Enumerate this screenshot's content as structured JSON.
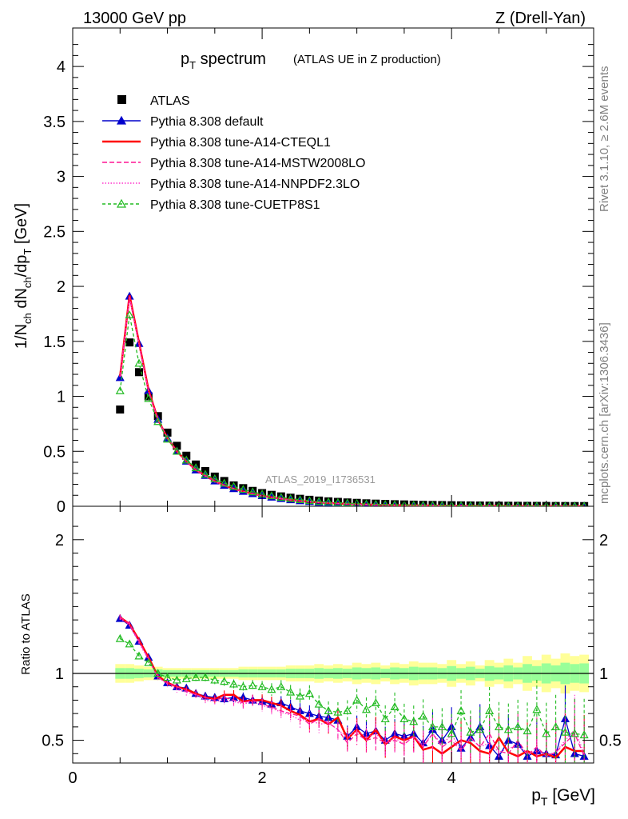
{
  "header": {
    "left": "13000 GeV pp",
    "right": "Z (Drell-Yan)"
  },
  "side": {
    "rivet": "Rivet 3.1.10, ≥ 2.6M events",
    "mcplots": "mcplots.cern.ch [arXiv:1306.3436]"
  },
  "title": {
    "main": "p",
    "main_sub": "T",
    "main_rest": " spectrum",
    "note": "(ATLAS UE in Z production)"
  },
  "watermark": "ATLAS_2019_I1736531",
  "colors": {
    "atlas": "#000000",
    "default": "#0000cc",
    "cteql1": "#ff0000",
    "mstw": "#ff1493",
    "nnpdf": "#ff33cc",
    "cuetp": "#22bb22",
    "band_outer": "#ffff99",
    "band_inner": "#99ff99"
  },
  "legend": [
    {
      "label": "ATLAS",
      "marker": "square",
      "color": "#000000",
      "dash": ""
    },
    {
      "label": "Pythia 8.308 default",
      "marker": "triangle",
      "color": "#0000cc",
      "dash": ""
    },
    {
      "label": "Pythia 8.308 tune-A14-CTEQL1",
      "marker": "none",
      "color": "#ff0000",
      "dash": ""
    },
    {
      "label": "Pythia 8.308 tune-A14-MSTW2008LO",
      "marker": "none",
      "color": "#ff1493",
      "dash": "6,3"
    },
    {
      "label": "Pythia 8.308 tune-A14-NNPDF2.3LO",
      "marker": "none",
      "color": "#ff33cc",
      "dash": "1.5,2"
    },
    {
      "label": "Pythia 8.308 tune-CUETP8S1",
      "marker": "open-triangle",
      "color": "#22bb22",
      "dash": "4,3"
    }
  ],
  "chart_data": {
    "type": "scatter",
    "xlabel": "p_T [GeV]",
    "ylabel_main": "1/N_ch dN_ch/dp_T [GeV]",
    "ylabel_ratio": "Ratio to ATLAS",
    "xlim": [
      0,
      5.5
    ],
    "ylim_main": [
      0,
      4.35
    ],
    "ylim_ratio": [
      0.33,
      2.25
    ],
    "xticks": [
      0,
      2,
      4
    ],
    "yticks_main": [
      "0",
      "0.5",
      "1",
      "1.5",
      "2",
      "2.5",
      "3",
      "3.5",
      "4"
    ],
    "yticks_ratio": [
      "0.5",
      "1",
      "2"
    ],
    "x": [
      0.5,
      0.6,
      0.7,
      0.8,
      0.9,
      1.0,
      1.1,
      1.2,
      1.3,
      1.4,
      1.5,
      1.6,
      1.7,
      1.8,
      1.9,
      2.0,
      2.1,
      2.2,
      2.3,
      2.4,
      2.5,
      2.6,
      2.7,
      2.8,
      2.9,
      3.0,
      3.1,
      3.2,
      3.3,
      3.4,
      3.5,
      3.6,
      3.7,
      3.8,
      3.9,
      4.0,
      4.1,
      4.2,
      4.3,
      4.4,
      4.5,
      4.6,
      4.7,
      4.8,
      4.9,
      5.0,
      5.1,
      5.2,
      5.3,
      5.4
    ],
    "series": [
      {
        "name": "ATLAS",
        "values": [
          0.88,
          1.49,
          1.22,
          1.0,
          0.82,
          0.67,
          0.55,
          0.46,
          0.38,
          0.32,
          0.27,
          0.23,
          0.19,
          0.165,
          0.14,
          0.12,
          0.104,
          0.09,
          0.078,
          0.068,
          0.059,
          0.052,
          0.045,
          0.04,
          0.035,
          0.031,
          0.027,
          0.024,
          0.021,
          0.019,
          0.017,
          0.015,
          0.013,
          0.012,
          0.011,
          0.0095,
          0.0085,
          0.0076,
          0.0068,
          0.006,
          0.0054,
          0.0048,
          0.0043,
          0.0038,
          0.0034,
          0.003,
          0.0027,
          0.0024,
          0.0021,
          0.0019
        ]
      },
      {
        "name": "Pythia 8.308 default",
        "values": [
          1.17,
          1.91,
          1.48,
          1.05,
          0.79,
          0.62,
          0.5,
          0.41,
          0.33,
          0.28,
          0.23,
          0.19,
          0.16,
          0.135,
          0.114,
          0.096,
          0.082,
          0.07,
          0.059,
          0.05,
          0.042,
          0.036,
          0.031,
          0.027,
          0.023,
          0.019,
          0.017,
          0.014,
          0.012,
          0.011,
          0.009,
          0.008,
          0.007,
          0.0062,
          0.0054,
          0.0048,
          0.0041,
          0.0036,
          0.0032,
          0.0028,
          0.0024,
          0.0021,
          0.0018,
          0.0016,
          0.0014,
          0.0012,
          0.0011,
          0.0009,
          0.0008,
          0.0007
        ]
      },
      {
        "name": "Pythia 8.308 tune-A14-CTEQL1",
        "values": [
          1.18,
          1.92,
          1.49,
          1.06,
          0.79,
          0.62,
          0.5,
          0.41,
          0.33,
          0.28,
          0.23,
          0.19,
          0.16,
          0.135,
          0.113,
          0.095,
          0.081,
          0.069,
          0.058,
          0.049,
          0.041,
          0.035,
          0.03,
          0.026,
          0.022,
          0.019,
          0.016,
          0.014,
          0.012,
          0.01,
          0.009,
          0.008,
          0.007,
          0.006,
          0.0052,
          0.0046,
          0.004,
          0.0035,
          0.003,
          0.0027,
          0.0023,
          0.002,
          0.0018,
          0.0015,
          0.0013,
          0.0012,
          0.001,
          0.0009,
          0.0008,
          0.0007
        ]
      },
      {
        "name": "Pythia 8.308 tune-A14-MSTW2008LO",
        "values": [
          1.18,
          1.91,
          1.48,
          1.05,
          0.79,
          0.62,
          0.5,
          0.41,
          0.33,
          0.28,
          0.23,
          0.19,
          0.16,
          0.134,
          0.112,
          0.094,
          0.08,
          0.068,
          0.057,
          0.048,
          0.041,
          0.035,
          0.03,
          0.025,
          0.022,
          0.018,
          0.016,
          0.013,
          0.012,
          0.01,
          0.0088,
          0.0076,
          0.0066,
          0.0058,
          0.005,
          0.0044,
          0.0039,
          0.0034,
          0.003,
          0.0026,
          0.0023,
          0.002,
          0.0017,
          0.0015,
          0.0013,
          0.0011,
          0.001,
          0.0009,
          0.0008,
          0.0007
        ]
      },
      {
        "name": "Pythia 8.308 tune-A14-NNPDF2.3LO",
        "values": [
          1.18,
          1.9,
          1.48,
          1.05,
          0.79,
          0.62,
          0.5,
          0.4,
          0.33,
          0.27,
          0.22,
          0.19,
          0.16,
          0.133,
          0.112,
          0.094,
          0.08,
          0.068,
          0.057,
          0.048,
          0.041,
          0.035,
          0.03,
          0.025,
          0.022,
          0.018,
          0.016,
          0.013,
          0.012,
          0.01,
          0.0088,
          0.0076,
          0.0066,
          0.0058,
          0.005,
          0.0044,
          0.0039,
          0.0034,
          0.003,
          0.0026,
          0.0023,
          0.002,
          0.0017,
          0.0015,
          0.0013,
          0.0011,
          0.001,
          0.0009,
          0.0008,
          0.0007
        ]
      },
      {
        "name": "Pythia 8.308 tune-CUETP8S1",
        "values": [
          1.05,
          1.74,
          1.3,
          0.98,
          0.77,
          0.61,
          0.5,
          0.42,
          0.35,
          0.29,
          0.25,
          0.21,
          0.18,
          0.153,
          0.131,
          0.111,
          0.095,
          0.081,
          0.069,
          0.06,
          0.051,
          0.044,
          0.038,
          0.033,
          0.029,
          0.025,
          0.021,
          0.019,
          0.016,
          0.014,
          0.012,
          0.011,
          0.0095,
          0.0083,
          0.0073,
          0.0064,
          0.0056,
          0.0049,
          0.0043,
          0.0038,
          0.0033,
          0.0029,
          0.0026,
          0.0023,
          0.002,
          0.0018,
          0.0016,
          0.0014,
          0.0012,
          0.0011
        ]
      }
    ],
    "ratio": {
      "band_outer": [
        0.07,
        0.07,
        0.06,
        0.05,
        0.05,
        0.04,
        0.04,
        0.04,
        0.04,
        0.04,
        0.04,
        0.04,
        0.04,
        0.05,
        0.05,
        0.05,
        0.05,
        0.05,
        0.06,
        0.06,
        0.06,
        0.07,
        0.06,
        0.07,
        0.06,
        0.08,
        0.07,
        0.08,
        0.06,
        0.08,
        0.07,
        0.09,
        0.08,
        0.08,
        0.07,
        0.1,
        0.07,
        0.09,
        0.06,
        0.1,
        0.08,
        0.11,
        0.08,
        0.13,
        0.1,
        0.14,
        0.11,
        0.15,
        0.13,
        0.14
      ],
      "band_inner": [
        0.04,
        0.04,
        0.035,
        0.03,
        0.03,
        0.025,
        0.025,
        0.025,
        0.025,
        0.025,
        0.025,
        0.025,
        0.025,
        0.03,
        0.03,
        0.03,
        0.03,
        0.03,
        0.035,
        0.035,
        0.035,
        0.04,
        0.035,
        0.04,
        0.035,
        0.045,
        0.04,
        0.045,
        0.035,
        0.045,
        0.04,
        0.05,
        0.045,
        0.045,
        0.04,
        0.055,
        0.04,
        0.05,
        0.035,
        0.055,
        0.045,
        0.06,
        0.045,
        0.07,
        0.055,
        0.075,
        0.06,
        0.08,
        0.07,
        0.075
      ],
      "series": [
        {
          "name": "Pythia 8.308 default",
          "values": [
            1.41,
            1.36,
            1.24,
            1.12,
            0.98,
            0.93,
            0.9,
            0.89,
            0.85,
            0.83,
            0.82,
            0.81,
            0.82,
            0.82,
            0.8,
            0.79,
            0.77,
            0.78,
            0.75,
            0.72,
            0.7,
            0.68,
            0.67,
            0.65,
            0.53,
            0.6,
            0.55,
            0.57,
            0.5,
            0.55,
            0.53,
            0.55,
            0.48,
            0.58,
            0.5,
            0.6,
            0.44,
            0.52,
            0.6,
            0.46,
            0.38,
            0.5,
            0.47,
            0.38,
            0.42,
            0.4,
            0.39,
            0.66,
            0.4,
            0.38
          ]
        },
        {
          "name": "Pythia 8.308 tune-A14-CTEQL1",
          "values": [
            1.42,
            1.37,
            1.25,
            1.12,
            0.98,
            0.93,
            0.9,
            0.88,
            0.85,
            0.82,
            0.81,
            0.84,
            0.84,
            0.79,
            0.8,
            0.8,
            0.78,
            0.76,
            0.72,
            0.69,
            0.64,
            0.66,
            0.62,
            0.67,
            0.51,
            0.58,
            0.5,
            0.58,
            0.47,
            0.53,
            0.5,
            0.53,
            0.43,
            0.45,
            0.4,
            0.45,
            0.5,
            0.48,
            0.42,
            0.4,
            0.52,
            0.41,
            0.38,
            0.42,
            0.38,
            0.4,
            0.37,
            0.45,
            0.42,
            0.42
          ]
        },
        {
          "name": "Pythia 8.308 tune-A14-MSTW2008LO",
          "values": [
            1.42,
            1.37,
            1.24,
            1.11,
            0.97,
            0.93,
            0.9,
            0.87,
            0.84,
            0.82,
            0.8,
            0.82,
            0.8,
            0.78,
            0.8,
            0.77,
            0.75,
            0.72,
            0.7,
            0.68,
            0.62,
            0.66,
            0.63,
            0.58,
            0.48,
            0.55,
            0.5,
            0.52,
            0.48,
            0.5,
            0.47,
            0.53,
            0.45,
            0.55,
            0.45,
            0.5,
            0.42,
            0.52,
            0.45,
            0.55,
            0.42,
            0.4,
            0.5,
            0.39,
            0.45,
            0.38,
            0.41,
            0.48,
            0.55,
            0.38
          ]
        },
        {
          "name": "Pythia 8.308 tune-A14-NNPDF2.3LO",
          "values": [
            1.41,
            1.36,
            1.23,
            1.1,
            0.97,
            0.92,
            0.88,
            0.86,
            0.84,
            0.8,
            0.79,
            0.8,
            0.79,
            0.77,
            0.79,
            0.76,
            0.74,
            0.71,
            0.69,
            0.65,
            0.66,
            0.62,
            0.63,
            0.58,
            0.52,
            0.57,
            0.52,
            0.55,
            0.48,
            0.52,
            0.47,
            0.53,
            0.46,
            0.55,
            0.47,
            0.54,
            0.43,
            0.52,
            0.45,
            0.48,
            0.41,
            0.44,
            0.46,
            0.4,
            0.42,
            0.39,
            0.41,
            0.5,
            0.58,
            0.4
          ]
        },
        {
          "name": "Pythia 8.308 tune-CUETP8S1",
          "values": [
            1.26,
            1.22,
            1.13,
            1.08,
            1.0,
            0.97,
            0.95,
            0.96,
            0.97,
            0.97,
            0.95,
            0.94,
            0.92,
            0.9,
            0.91,
            0.9,
            0.88,
            0.9,
            0.86,
            0.83,
            0.85,
            0.77,
            0.72,
            0.71,
            0.72,
            0.8,
            0.73,
            0.78,
            0.66,
            0.75,
            0.66,
            0.64,
            0.68,
            0.6,
            0.6,
            0.55,
            0.72,
            0.56,
            0.58,
            0.72,
            0.6,
            0.58,
            0.6,
            0.57,
            0.73,
            0.55,
            0.6,
            0.56,
            0.55,
            0.54
          ]
        }
      ]
    },
    "legend_position": "top-left",
    "grid": false
  }
}
